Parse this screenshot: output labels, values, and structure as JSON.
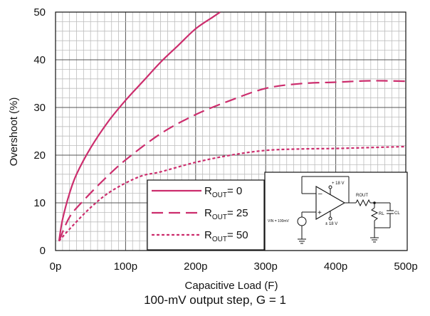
{
  "chart_data": {
    "type": "line",
    "xlabel": "Capacitive Load (F)",
    "ylabel": "Overshoot (%)",
    "xlim": [
      0,
      500
    ],
    "ylim": [
      0,
      50
    ],
    "x_ticks": [
      "0p",
      "100p",
      "200p",
      "300p",
      "400p",
      "500p"
    ],
    "y_ticks": [
      "0",
      "10",
      "20",
      "30",
      "40",
      "50"
    ],
    "grid": true,
    "legend_position": "bottom-center",
    "series": [
      {
        "name": "ROUT= 0",
        "name_parts": {
          "main": "R",
          "sub": "OUT",
          "rest": "= 0"
        },
        "style": "solid",
        "color": "#cc2d6d",
        "points": [
          [
            5,
            2
          ],
          [
            10,
            6.5
          ],
          [
            20,
            12
          ],
          [
            30,
            16
          ],
          [
            50,
            21.5
          ],
          [
            75,
            27
          ],
          [
            100,
            31.5
          ],
          [
            125,
            35.5
          ],
          [
            150,
            39.5
          ],
          [
            175,
            43
          ],
          [
            200,
            46.5
          ],
          [
            225,
            49
          ],
          [
            235,
            50
          ]
        ]
      },
      {
        "name": "ROUT= 25",
        "name_parts": {
          "main": "R",
          "sub": "OUT",
          "rest": "= 25"
        },
        "style": "dashed",
        "color": "#cc2d6d",
        "points": [
          [
            5,
            2
          ],
          [
            20,
            7
          ],
          [
            40,
            10.5
          ],
          [
            70,
            15
          ],
          [
            100,
            19
          ],
          [
            150,
            24.5
          ],
          [
            200,
            28.5
          ],
          [
            250,
            31.5
          ],
          [
            300,
            34
          ],
          [
            350,
            35
          ],
          [
            400,
            35.3
          ],
          [
            450,
            35.6
          ],
          [
            500,
            35.5
          ]
        ]
      },
      {
        "name": "ROUT= 50",
        "name_parts": {
          "main": "R",
          "sub": "OUT",
          "rest": "= 50"
        },
        "style": "dotted",
        "color": "#cc2d6d",
        "points": [
          [
            5,
            2
          ],
          [
            20,
            4.5
          ],
          [
            50,
            9
          ],
          [
            80,
            12.5
          ],
          [
            120,
            15.5
          ],
          [
            150,
            16.5
          ],
          [
            200,
            18.5
          ],
          [
            250,
            20
          ],
          [
            300,
            21
          ],
          [
            350,
            21.3
          ],
          [
            400,
            21.4
          ],
          [
            450,
            21.6
          ],
          [
            500,
            21.8
          ]
        ]
      }
    ]
  },
  "schematic": {
    "supply_positive": "+ 18 V",
    "supply_negative": "± 18 V",
    "output_resistor": "ROUT",
    "load_resistor": "RL",
    "load_capacitor": "CL",
    "input_source": "VIN = 100mV",
    "inverting_input": "–",
    "noninverting_input": "+"
  },
  "caption": "100-mV output step, G = 1"
}
